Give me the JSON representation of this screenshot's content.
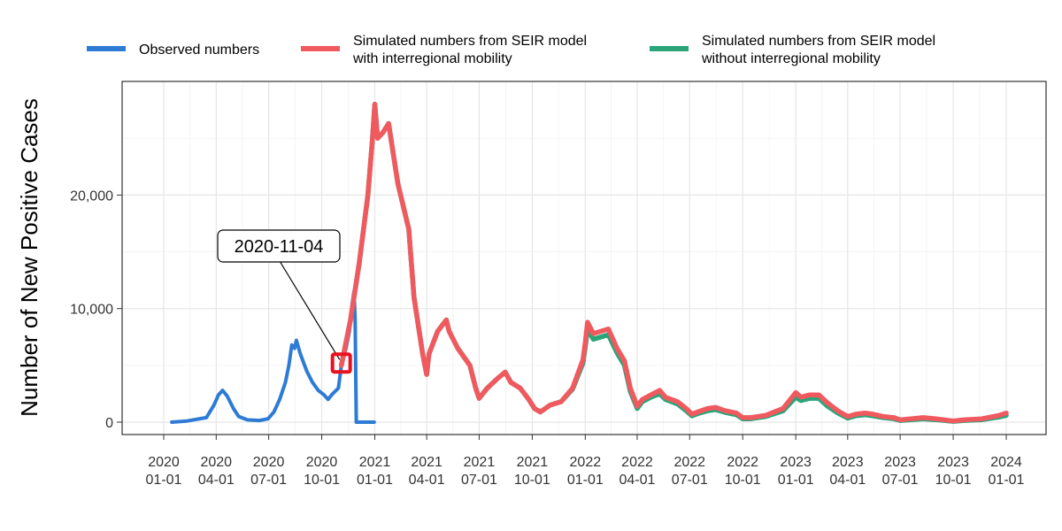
{
  "chart_data": {
    "type": "line",
    "title": "",
    "xlabel": "",
    "ylabel": "Number of New Positive Cases",
    "xlim": [
      "2020-01-01",
      "2024-01-01"
    ],
    "ylim": [
      0,
      30000
    ],
    "y_ticks": [
      0,
      10000,
      20000
    ],
    "y_tick_labels": [
      "0",
      "10,000",
      "20,000"
    ],
    "x_ticks": [
      "2020-01-01",
      "2020-04-01",
      "2020-07-01",
      "2020-10-01",
      "2021-01-01",
      "2021-04-01",
      "2021-07-01",
      "2021-10-01",
      "2022-01-01",
      "2022-04-01",
      "2022-07-01",
      "2022-10-01",
      "2023-01-01",
      "2023-04-01",
      "2023-07-01",
      "2023-10-01",
      "2024-01-01"
    ],
    "x_tick_labels": [
      [
        "2020",
        "01-01"
      ],
      [
        "2020",
        "04-01"
      ],
      [
        "2020",
        "07-01"
      ],
      [
        "2020",
        "10-01"
      ],
      [
        "2021",
        "01-01"
      ],
      [
        "2021",
        "04-01"
      ],
      [
        "2021",
        "07-01"
      ],
      [
        "2021",
        "10-01"
      ],
      [
        "2022",
        "01-01"
      ],
      [
        "2022",
        "04-01"
      ],
      [
        "2022",
        "07-01"
      ],
      [
        "2022",
        "10-01"
      ],
      [
        "2023",
        "01-01"
      ],
      [
        "2023",
        "04-01"
      ],
      [
        "2023",
        "07-01"
      ],
      [
        "2023",
        "10-01"
      ],
      [
        "2024",
        "01-01"
      ]
    ],
    "grid": true,
    "legend_position": "top",
    "series": [
      {
        "name": "Observed numbers",
        "color": "#2e7bd6",
        "points": [
          [
            "2020-01-15",
            0
          ],
          [
            "2020-02-10",
            100
          ],
          [
            "2020-03-15",
            400
          ],
          [
            "2020-03-28",
            1500
          ],
          [
            "2020-04-05",
            2400
          ],
          [
            "2020-04-12",
            2800
          ],
          [
            "2020-04-20",
            2300
          ],
          [
            "2020-05-01",
            1200
          ],
          [
            "2020-05-10",
            500
          ],
          [
            "2020-05-25",
            200
          ],
          [
            "2020-06-15",
            150
          ],
          [
            "2020-06-30",
            300
          ],
          [
            "2020-07-10",
            900
          ],
          [
            "2020-07-20",
            2000
          ],
          [
            "2020-07-30",
            3500
          ],
          [
            "2020-08-05",
            5000
          ],
          [
            "2020-08-10",
            6800
          ],
          [
            "2020-08-15",
            6500
          ],
          [
            "2020-08-18",
            7200
          ],
          [
            "2020-08-25",
            6000
          ],
          [
            "2020-09-05",
            4500
          ],
          [
            "2020-09-15",
            3500
          ],
          [
            "2020-09-25",
            2800
          ],
          [
            "2020-10-05",
            2400
          ],
          [
            "2020-10-12",
            2000
          ],
          [
            "2020-10-20",
            2500
          ],
          [
            "2020-10-30",
            3000
          ],
          [
            "2020-11-04",
            5000
          ],
          [
            "2020-11-12",
            6500
          ],
          [
            "2020-11-18",
            8000
          ],
          [
            "2020-11-23",
            10500
          ],
          [
            "2020-11-26",
            11500
          ],
          [
            "2020-11-28",
            9000
          ],
          [
            "2020-11-29",
            4000
          ],
          [
            "2020-11-30",
            0
          ],
          [
            "2020-12-31",
            0
          ]
        ]
      },
      {
        "name": "Simulated numbers from SEIR model\nwith interregional mobility",
        "color": "#f05a5f",
        "points": [
          [
            "2020-11-04",
            5000
          ],
          [
            "2020-11-20",
            9000
          ],
          [
            "2020-12-05",
            14000
          ],
          [
            "2020-12-20",
            20000
          ],
          [
            "2020-12-28",
            25000
          ],
          [
            "2021-01-01",
            28000
          ],
          [
            "2021-01-06",
            25000
          ],
          [
            "2021-01-15",
            25500
          ],
          [
            "2021-01-25",
            26300
          ],
          [
            "2021-02-10",
            21000
          ],
          [
            "2021-03-01",
            17000
          ],
          [
            "2021-03-10",
            11000
          ],
          [
            "2021-03-25",
            6000
          ],
          [
            "2021-04-01",
            4200
          ],
          [
            "2021-04-05",
            6000
          ],
          [
            "2021-04-20",
            8000
          ],
          [
            "2021-05-05",
            9000
          ],
          [
            "2021-05-10",
            8000
          ],
          [
            "2021-05-25",
            6500
          ],
          [
            "2021-06-15",
            5000
          ],
          [
            "2021-06-25",
            3000
          ],
          [
            "2021-07-01",
            2100
          ],
          [
            "2021-07-15",
            3000
          ],
          [
            "2021-08-01",
            3800
          ],
          [
            "2021-08-15",
            4400
          ],
          [
            "2021-08-25",
            3500
          ],
          [
            "2021-09-10",
            3000
          ],
          [
            "2021-09-25",
            2000
          ],
          [
            "2021-10-05",
            1200
          ],
          [
            "2021-10-15",
            900
          ],
          [
            "2021-11-01",
            1500
          ],
          [
            "2021-11-20",
            1800
          ],
          [
            "2021-12-10",
            3000
          ],
          [
            "2021-12-28",
            5500
          ],
          [
            "2022-01-01",
            7000
          ],
          [
            "2022-01-05",
            8800
          ],
          [
            "2022-01-15",
            7800
          ],
          [
            "2022-01-28",
            8000
          ],
          [
            "2022-02-10",
            8200
          ],
          [
            "2022-02-25",
            6500
          ],
          [
            "2022-03-10",
            5400
          ],
          [
            "2022-03-20",
            3000
          ],
          [
            "2022-04-01",
            1400
          ],
          [
            "2022-04-10",
            2000
          ],
          [
            "2022-04-25",
            2400
          ],
          [
            "2022-05-10",
            2800
          ],
          [
            "2022-05-20",
            2200
          ],
          [
            "2022-06-10",
            1800
          ],
          [
            "2022-06-25",
            1200
          ],
          [
            "2022-07-05",
            700
          ],
          [
            "2022-07-15",
            900
          ],
          [
            "2022-08-01",
            1200
          ],
          [
            "2022-08-15",
            1300
          ],
          [
            "2022-09-01",
            1000
          ],
          [
            "2022-09-20",
            800
          ],
          [
            "2022-10-01",
            400
          ],
          [
            "2022-10-15",
            400
          ],
          [
            "2022-11-10",
            600
          ],
          [
            "2022-12-10",
            1200
          ],
          [
            "2023-01-01",
            2600
          ],
          [
            "2023-01-10",
            2200
          ],
          [
            "2023-01-25",
            2400
          ],
          [
            "2023-02-10",
            2400
          ],
          [
            "2023-02-25",
            1700
          ],
          [
            "2023-03-15",
            1000
          ],
          [
            "2023-04-01",
            500
          ],
          [
            "2023-04-15",
            700
          ],
          [
            "2023-05-01",
            800
          ],
          [
            "2023-05-15",
            700
          ],
          [
            "2023-06-01",
            500
          ],
          [
            "2023-06-20",
            400
          ],
          [
            "2023-07-01",
            200
          ],
          [
            "2023-07-20",
            300
          ],
          [
            "2023-08-10",
            400
          ],
          [
            "2023-09-01",
            300
          ],
          [
            "2023-10-01",
            100
          ],
          [
            "2023-10-20",
            200
          ],
          [
            "2023-11-20",
            300
          ],
          [
            "2023-12-20",
            600
          ],
          [
            "2024-01-01",
            800
          ]
        ]
      },
      {
        "name": "Simulated numbers from SEIR model\nwithout interregional mobility",
        "color": "#2aa57a",
        "points": [
          [
            "2020-11-04",
            5000
          ],
          [
            "2020-11-20",
            9000
          ],
          [
            "2020-12-05",
            14000
          ],
          [
            "2020-12-20",
            20000
          ],
          [
            "2020-12-28",
            25000
          ],
          [
            "2021-01-01",
            28000
          ],
          [
            "2021-01-06",
            25000
          ],
          [
            "2021-01-15",
            25500
          ],
          [
            "2021-01-25",
            26300
          ],
          [
            "2021-02-10",
            21000
          ],
          [
            "2021-03-01",
            17000
          ],
          [
            "2021-03-10",
            11000
          ],
          [
            "2021-03-25",
            6000
          ],
          [
            "2021-04-01",
            4200
          ],
          [
            "2021-04-05",
            6000
          ],
          [
            "2021-04-20",
            8000
          ],
          [
            "2021-05-05",
            9000
          ],
          [
            "2021-05-10",
            8000
          ],
          [
            "2021-05-25",
            6500
          ],
          [
            "2021-06-15",
            5000
          ],
          [
            "2021-06-25",
            3000
          ],
          [
            "2021-07-01",
            2100
          ],
          [
            "2021-07-15",
            3000
          ],
          [
            "2021-08-01",
            3800
          ],
          [
            "2021-08-15",
            4400
          ],
          [
            "2021-08-25",
            3500
          ],
          [
            "2021-09-10",
            3000
          ],
          [
            "2021-09-25",
            2000
          ],
          [
            "2021-10-05",
            1200
          ],
          [
            "2021-10-15",
            900
          ],
          [
            "2021-11-01",
            1500
          ],
          [
            "2021-11-20",
            1800
          ],
          [
            "2021-12-10",
            2900
          ],
          [
            "2021-12-28",
            5200
          ],
          [
            "2022-01-01",
            6600
          ],
          [
            "2022-01-05",
            8200
          ],
          [
            "2022-01-15",
            7300
          ],
          [
            "2022-01-28",
            7500
          ],
          [
            "2022-02-10",
            7700
          ],
          [
            "2022-02-25",
            6100
          ],
          [
            "2022-03-10",
            5000
          ],
          [
            "2022-03-20",
            2700
          ],
          [
            "2022-04-01",
            1200
          ],
          [
            "2022-04-10",
            1800
          ],
          [
            "2022-04-25",
            2200
          ],
          [
            "2022-05-10",
            2500
          ],
          [
            "2022-05-20",
            2000
          ],
          [
            "2022-06-10",
            1600
          ],
          [
            "2022-06-25",
            1000
          ],
          [
            "2022-07-05",
            550
          ],
          [
            "2022-07-15",
            750
          ],
          [
            "2022-08-01",
            1000
          ],
          [
            "2022-08-15",
            1100
          ],
          [
            "2022-09-01",
            850
          ],
          [
            "2022-09-20",
            650
          ],
          [
            "2022-10-01",
            300
          ],
          [
            "2022-10-15",
            300
          ],
          [
            "2022-11-10",
            500
          ],
          [
            "2022-12-10",
            1000
          ],
          [
            "2023-01-01",
            2200
          ],
          [
            "2023-01-10",
            1900
          ],
          [
            "2023-01-25",
            2100
          ],
          [
            "2023-02-10",
            2100
          ],
          [
            "2023-02-25",
            1400
          ],
          [
            "2023-03-15",
            800
          ],
          [
            "2023-04-01",
            350
          ],
          [
            "2023-04-15",
            550
          ],
          [
            "2023-05-01",
            650
          ],
          [
            "2023-05-15",
            550
          ],
          [
            "2023-06-01",
            400
          ],
          [
            "2023-06-20",
            300
          ],
          [
            "2023-07-01",
            150
          ],
          [
            "2023-07-20",
            220
          ],
          [
            "2023-08-10",
            300
          ],
          [
            "2023-09-01",
            220
          ],
          [
            "2023-10-01",
            70
          ],
          [
            "2023-10-20",
            150
          ],
          [
            "2023-11-20",
            220
          ],
          [
            "2023-12-20",
            450
          ],
          [
            "2024-01-01",
            600
          ]
        ]
      }
    ],
    "annotation": {
      "label": "2020-11-04",
      "x": "2020-11-04",
      "y": 5200,
      "box_color": "#e8121f"
    }
  }
}
